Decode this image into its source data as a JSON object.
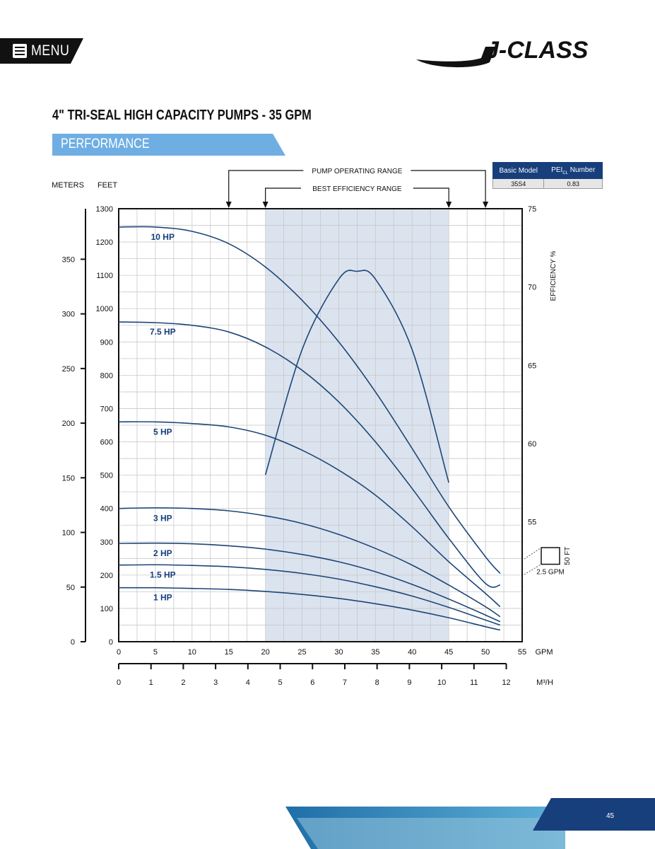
{
  "header": {
    "menu_label": "MENU",
    "logo_text": "J-CLASS"
  },
  "page": {
    "title": "4\" TRI-SEAL HIGH CAPACITY PUMPS - 35 GPM",
    "section": "PERFORMANCE",
    "page_number": "45"
  },
  "pei_table": {
    "col1": "Basic Model",
    "col2": "PEI",
    "col2_sub": "CL",
    "col2_suffix": " Number",
    "model": "35S4",
    "pei": "0.83"
  },
  "colors": {
    "navy": "#173f7c",
    "curve": "#1d4677",
    "banner": "#6faee3",
    "best_range": "#dbe3ef",
    "grid": "#c9c9c9"
  },
  "chart_data": {
    "type": "line",
    "x_gpm_range": [
      0,
      55
    ],
    "x_gpm_ticks": [
      0,
      5,
      10,
      15,
      20,
      25,
      30,
      35,
      40,
      45,
      50,
      55
    ],
    "x_gpm_label": "GPM",
    "x_m3h_ticks": [
      0,
      1,
      2,
      3,
      4,
      5,
      6,
      7,
      8,
      9,
      10,
      11,
      12
    ],
    "x_m3h_label": "M³/H",
    "y_feet_range": [
      0,
      1300
    ],
    "y_feet_ticks": [
      0,
      100,
      200,
      300,
      400,
      500,
      600,
      700,
      800,
      900,
      1000,
      1100,
      1200,
      1300
    ],
    "y_feet_label": "FEET",
    "y_meters_ticks": [
      0,
      50,
      100,
      150,
      200,
      250,
      300,
      350
    ],
    "y_meters_label": "METERS",
    "y_eff_ticks": [
      55,
      60,
      65,
      70,
      75
    ],
    "y_eff_label": "EFFICIENCY %",
    "grid": true,
    "pump_operating_range": {
      "label": "PUMP OPERATING RANGE",
      "from_gpm": 15,
      "to_gpm": 50
    },
    "best_efficiency_range": {
      "label": "BEST EFFICIENCY RANGE",
      "from_gpm": 20,
      "to_gpm": 45
    },
    "series": [
      {
        "name": "10 HP",
        "x": [
          0,
          5,
          10,
          15,
          20,
          25,
          30,
          35,
          40,
          45,
          50,
          52
        ],
        "y": [
          1245,
          1245,
          1232,
          1195,
          1125,
          1025,
          900,
          750,
          580,
          405,
          255,
          205
        ]
      },
      {
        "name": "7.5 HP",
        "x": [
          0,
          5,
          10,
          15,
          20,
          25,
          30,
          35,
          40,
          45,
          50,
          52
        ],
        "y": [
          960,
          958,
          950,
          930,
          885,
          815,
          720,
          600,
          460,
          310,
          175,
          170
        ]
      },
      {
        "name": "5 HP",
        "x": [
          0,
          5,
          10,
          15,
          20,
          25,
          30,
          35,
          40,
          45,
          50,
          52
        ],
        "y": [
          660,
          660,
          655,
          645,
          620,
          575,
          515,
          440,
          345,
          240,
          145,
          105
        ]
      },
      {
        "name": "3 HP",
        "x": [
          0,
          5,
          10,
          15,
          20,
          25,
          30,
          35,
          40,
          45,
          50,
          52
        ],
        "y": [
          400,
          402,
          400,
          393,
          378,
          355,
          322,
          280,
          230,
          170,
          105,
          75
        ]
      },
      {
        "name": "2 HP",
        "x": [
          0,
          5,
          10,
          15,
          20,
          25,
          30,
          35,
          40,
          45,
          50,
          52
        ],
        "y": [
          295,
          296,
          294,
          288,
          278,
          262,
          240,
          210,
          172,
          128,
          80,
          60
        ]
      },
      {
        "name": "1.5 HP",
        "x": [
          0,
          5,
          10,
          15,
          20,
          25,
          30,
          35,
          40,
          45,
          50,
          52
        ],
        "y": [
          230,
          231,
          229,
          225,
          217,
          205,
          188,
          165,
          137,
          103,
          65,
          50
        ]
      },
      {
        "name": "1 HP",
        "x": [
          0,
          5,
          10,
          15,
          20,
          25,
          30,
          35,
          40,
          45,
          50,
          52
        ],
        "y": [
          162,
          162,
          160,
          157,
          151,
          142,
          130,
          114,
          95,
          72,
          45,
          35
        ]
      }
    ],
    "efficiency_curve": {
      "x": [
        20,
        25,
        30,
        32.5,
        35,
        40,
        45
      ],
      "y": [
        58,
        66,
        70.5,
        71,
        70.5,
        66,
        57.5
      ]
    },
    "scale_box": {
      "height_label": "50 FT",
      "width_label": "2.5 GPM"
    }
  }
}
